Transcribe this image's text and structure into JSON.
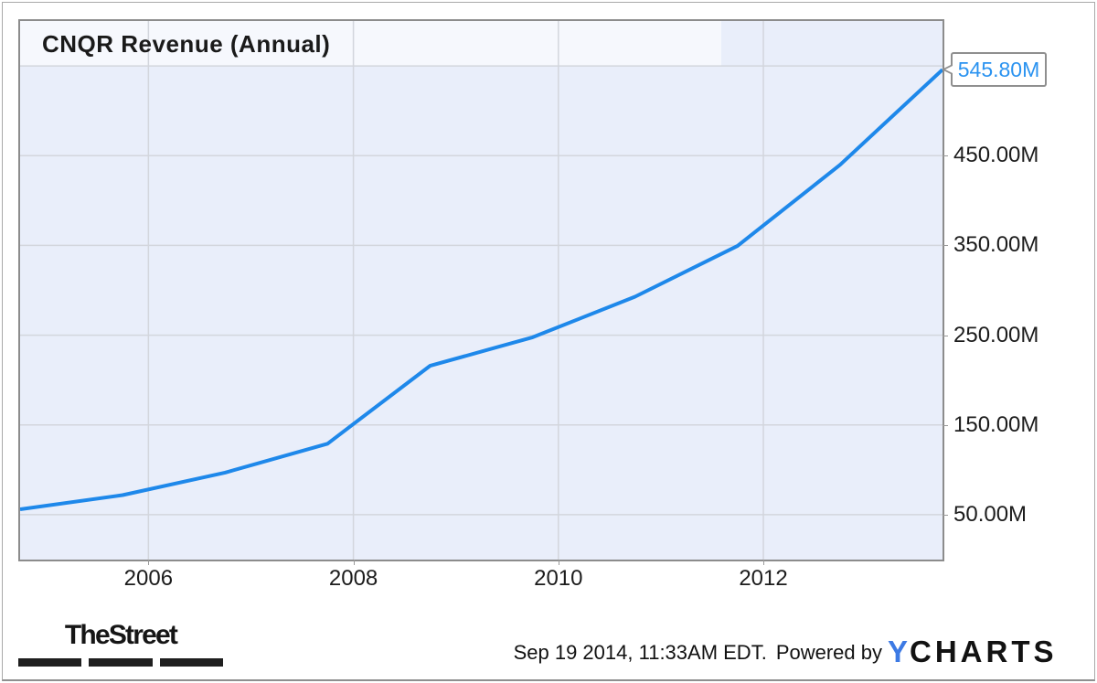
{
  "chart_data": {
    "type": "line",
    "title": "CNQR Revenue (Annual)",
    "series": [
      {
        "name": "CNQR Revenue (Annual)",
        "x": [
          2004.748,
          2005.748,
          2006.748,
          2007.748,
          2008.748,
          2009.748,
          2010.748,
          2011.748,
          2012.748,
          2013.748
        ],
        "values": [
          56.0,
          71.8,
          96.9,
          129.1,
          215.9,
          247.6,
          292.9,
          349.5,
          439.8,
          545.8
        ]
      }
    ],
    "xlim": [
      2004.748,
      2013.748
    ],
    "ylim": [
      0,
      600
    ],
    "x_ticks": [
      {
        "pos": 2006,
        "label": "2006"
      },
      {
        "pos": 2008,
        "label": "2008"
      },
      {
        "pos": 2010,
        "label": "2010"
      },
      {
        "pos": 2012,
        "label": "2012"
      }
    ],
    "y_gridlines": [
      50,
      150,
      250,
      350,
      450,
      550
    ],
    "y_ticks": [
      {
        "pos": 50,
        "label": "50.00M"
      },
      {
        "pos": 150,
        "label": "150.00M"
      },
      {
        "pos": 250,
        "label": "250.00M"
      },
      {
        "pos": 350,
        "label": "350.00M"
      },
      {
        "pos": 450,
        "label": "450.00M"
      }
    ],
    "grid": true,
    "legend": "none",
    "last_point_label": "545.80M"
  },
  "colors": {
    "line": "#1e88ea",
    "plot_bg": "#e9eefa",
    "title_band_bg": "#f6f8fd",
    "grid": "#d3d6dd",
    "chart_border": "#8c8c8c",
    "callout_text": "#2b93f0",
    "ycharts_blue": "#3d7ae4"
  },
  "footer": {
    "thestreet_logo": "TheStreet",
    "timestamp": "Sep 19 2014, 11:33AM EDT.",
    "powered_by": "Powered by",
    "ycharts_logo_y": "Y",
    "ycharts_logo_charts": "CHARTS"
  }
}
